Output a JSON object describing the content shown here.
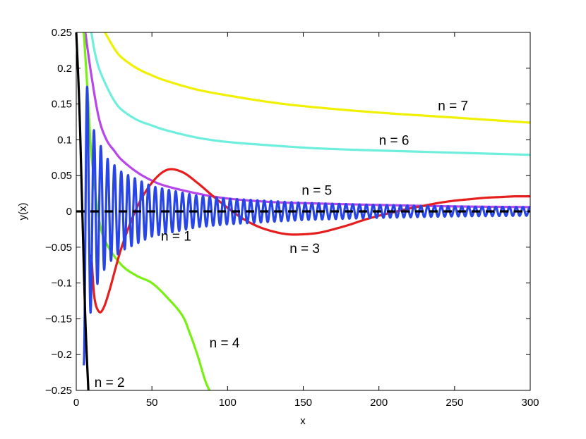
{
  "chart_data": {
    "type": "line",
    "xlabel": "x",
    "ylabel": "y(x)",
    "xlim": [
      0,
      300
    ],
    "ylim": [
      -0.25,
      0.25
    ],
    "xticks": [
      "0",
      "50",
      "100",
      "150",
      "200",
      "250",
      "300"
    ],
    "yticks": [
      "0.25",
      "0.2",
      "0.15",
      "0.1",
      "0.05",
      "0",
      "−0.05",
      "−0.1",
      "−0.15",
      "−0.2",
      "−0.25"
    ],
    "grid": false,
    "reference_line": {
      "y": 0,
      "style": "dashed",
      "color": "#000000"
    },
    "series": [
      {
        "label": "n = 1",
        "color": "#2846e6",
        "x": [
          5,
          8,
          12,
          20,
          30,
          50,
          80,
          100,
          150,
          200,
          250,
          300
        ],
        "envelope": [
          0.215,
          0.16,
          0.11,
          0.075,
          0.055,
          0.035,
          0.022,
          0.018,
          0.012,
          0.009,
          0.007,
          0.006
        ],
        "note_period": 4.5
      },
      {
        "label": "n = 2",
        "color": "#000000",
        "x": [
          0,
          2,
          4,
          6,
          8
        ],
        "y": [
          0.25,
          0.15,
          0.0,
          -0.15,
          -0.25
        ]
      },
      {
        "label": "n = 3",
        "color": "#e61e1e",
        "x": [
          10,
          12,
          15,
          18,
          22,
          30,
          40,
          50,
          60,
          70,
          80,
          90,
          100,
          110,
          120,
          130,
          140,
          150,
          160,
          170,
          180,
          190,
          200,
          210,
          220,
          230,
          240,
          250,
          260,
          270,
          280,
          290,
          300
        ],
        "y": [
          -0.06,
          -0.12,
          -0.14,
          -0.135,
          -0.11,
          -0.05,
          0.005,
          0.04,
          0.058,
          0.055,
          0.04,
          0.022,
          0.005,
          -0.01,
          -0.021,
          -0.028,
          -0.032,
          -0.032,
          -0.03,
          -0.025,
          -0.019,
          -0.012,
          -0.006,
          -0.001,
          0.004,
          0.008,
          0.012,
          0.015,
          0.017,
          0.019,
          0.02,
          0.021,
          0.021
        ]
      },
      {
        "label": "n = 4",
        "color": "#78f014",
        "x": [
          5,
          8,
          10,
          15,
          20,
          30,
          40,
          50,
          60,
          70,
          75,
          80,
          85,
          88
        ],
        "y": [
          0.25,
          0.15,
          0.08,
          -0.01,
          -0.045,
          -0.075,
          -0.09,
          -0.1,
          -0.12,
          -0.145,
          -0.17,
          -0.2,
          -0.235,
          -0.25
        ]
      },
      {
        "label": "n = 5",
        "color": "#b846e8",
        "x": [
          6,
          10,
          15,
          20,
          25,
          30,
          40,
          50,
          60,
          80,
          100,
          130,
          160,
          200,
          250,
          300
        ],
        "y": [
          0.25,
          0.19,
          0.13,
          0.1,
          0.085,
          0.072,
          0.055,
          0.043,
          0.035,
          0.025,
          0.018,
          0.013,
          0.011,
          0.009,
          0.007,
          0.006
        ]
      },
      {
        "label": "n = 6",
        "color": "#6eeedd",
        "x": [
          10,
          12,
          15,
          20,
          25,
          30,
          40,
          50,
          60,
          80,
          100,
          130,
          160,
          200,
          250,
          300
        ],
        "y": [
          0.25,
          0.225,
          0.2,
          0.175,
          0.155,
          0.142,
          0.128,
          0.12,
          0.113,
          0.103,
          0.097,
          0.092,
          0.088,
          0.085,
          0.082,
          0.079
        ]
      },
      {
        "label": "n = 7",
        "color": "#f0f000",
        "x": [
          19,
          25,
          30,
          40,
          50,
          60,
          80,
          100,
          130,
          160,
          200,
          250,
          300
        ],
        "y": [
          0.25,
          0.228,
          0.215,
          0.2,
          0.19,
          0.182,
          0.17,
          0.162,
          0.152,
          0.145,
          0.138,
          0.131,
          0.124
        ]
      }
    ],
    "annotations": [
      {
        "text": "n = 7",
        "x": 239,
        "y": 0.141
      },
      {
        "text": "n = 6",
        "x": 200,
        "y": 0.093
      },
      {
        "text": "n = 5",
        "x": 149,
        "y": 0.023
      },
      {
        "text": "n = 1",
        "x": 56,
        "y": -0.041
      },
      {
        "text": "n = 3",
        "x": 141,
        "y": -0.058
      },
      {
        "text": "n = 4",
        "x": 88,
        "y": -0.19
      },
      {
        "text": "n = 2",
        "x": 12,
        "y": -0.245
      }
    ]
  }
}
